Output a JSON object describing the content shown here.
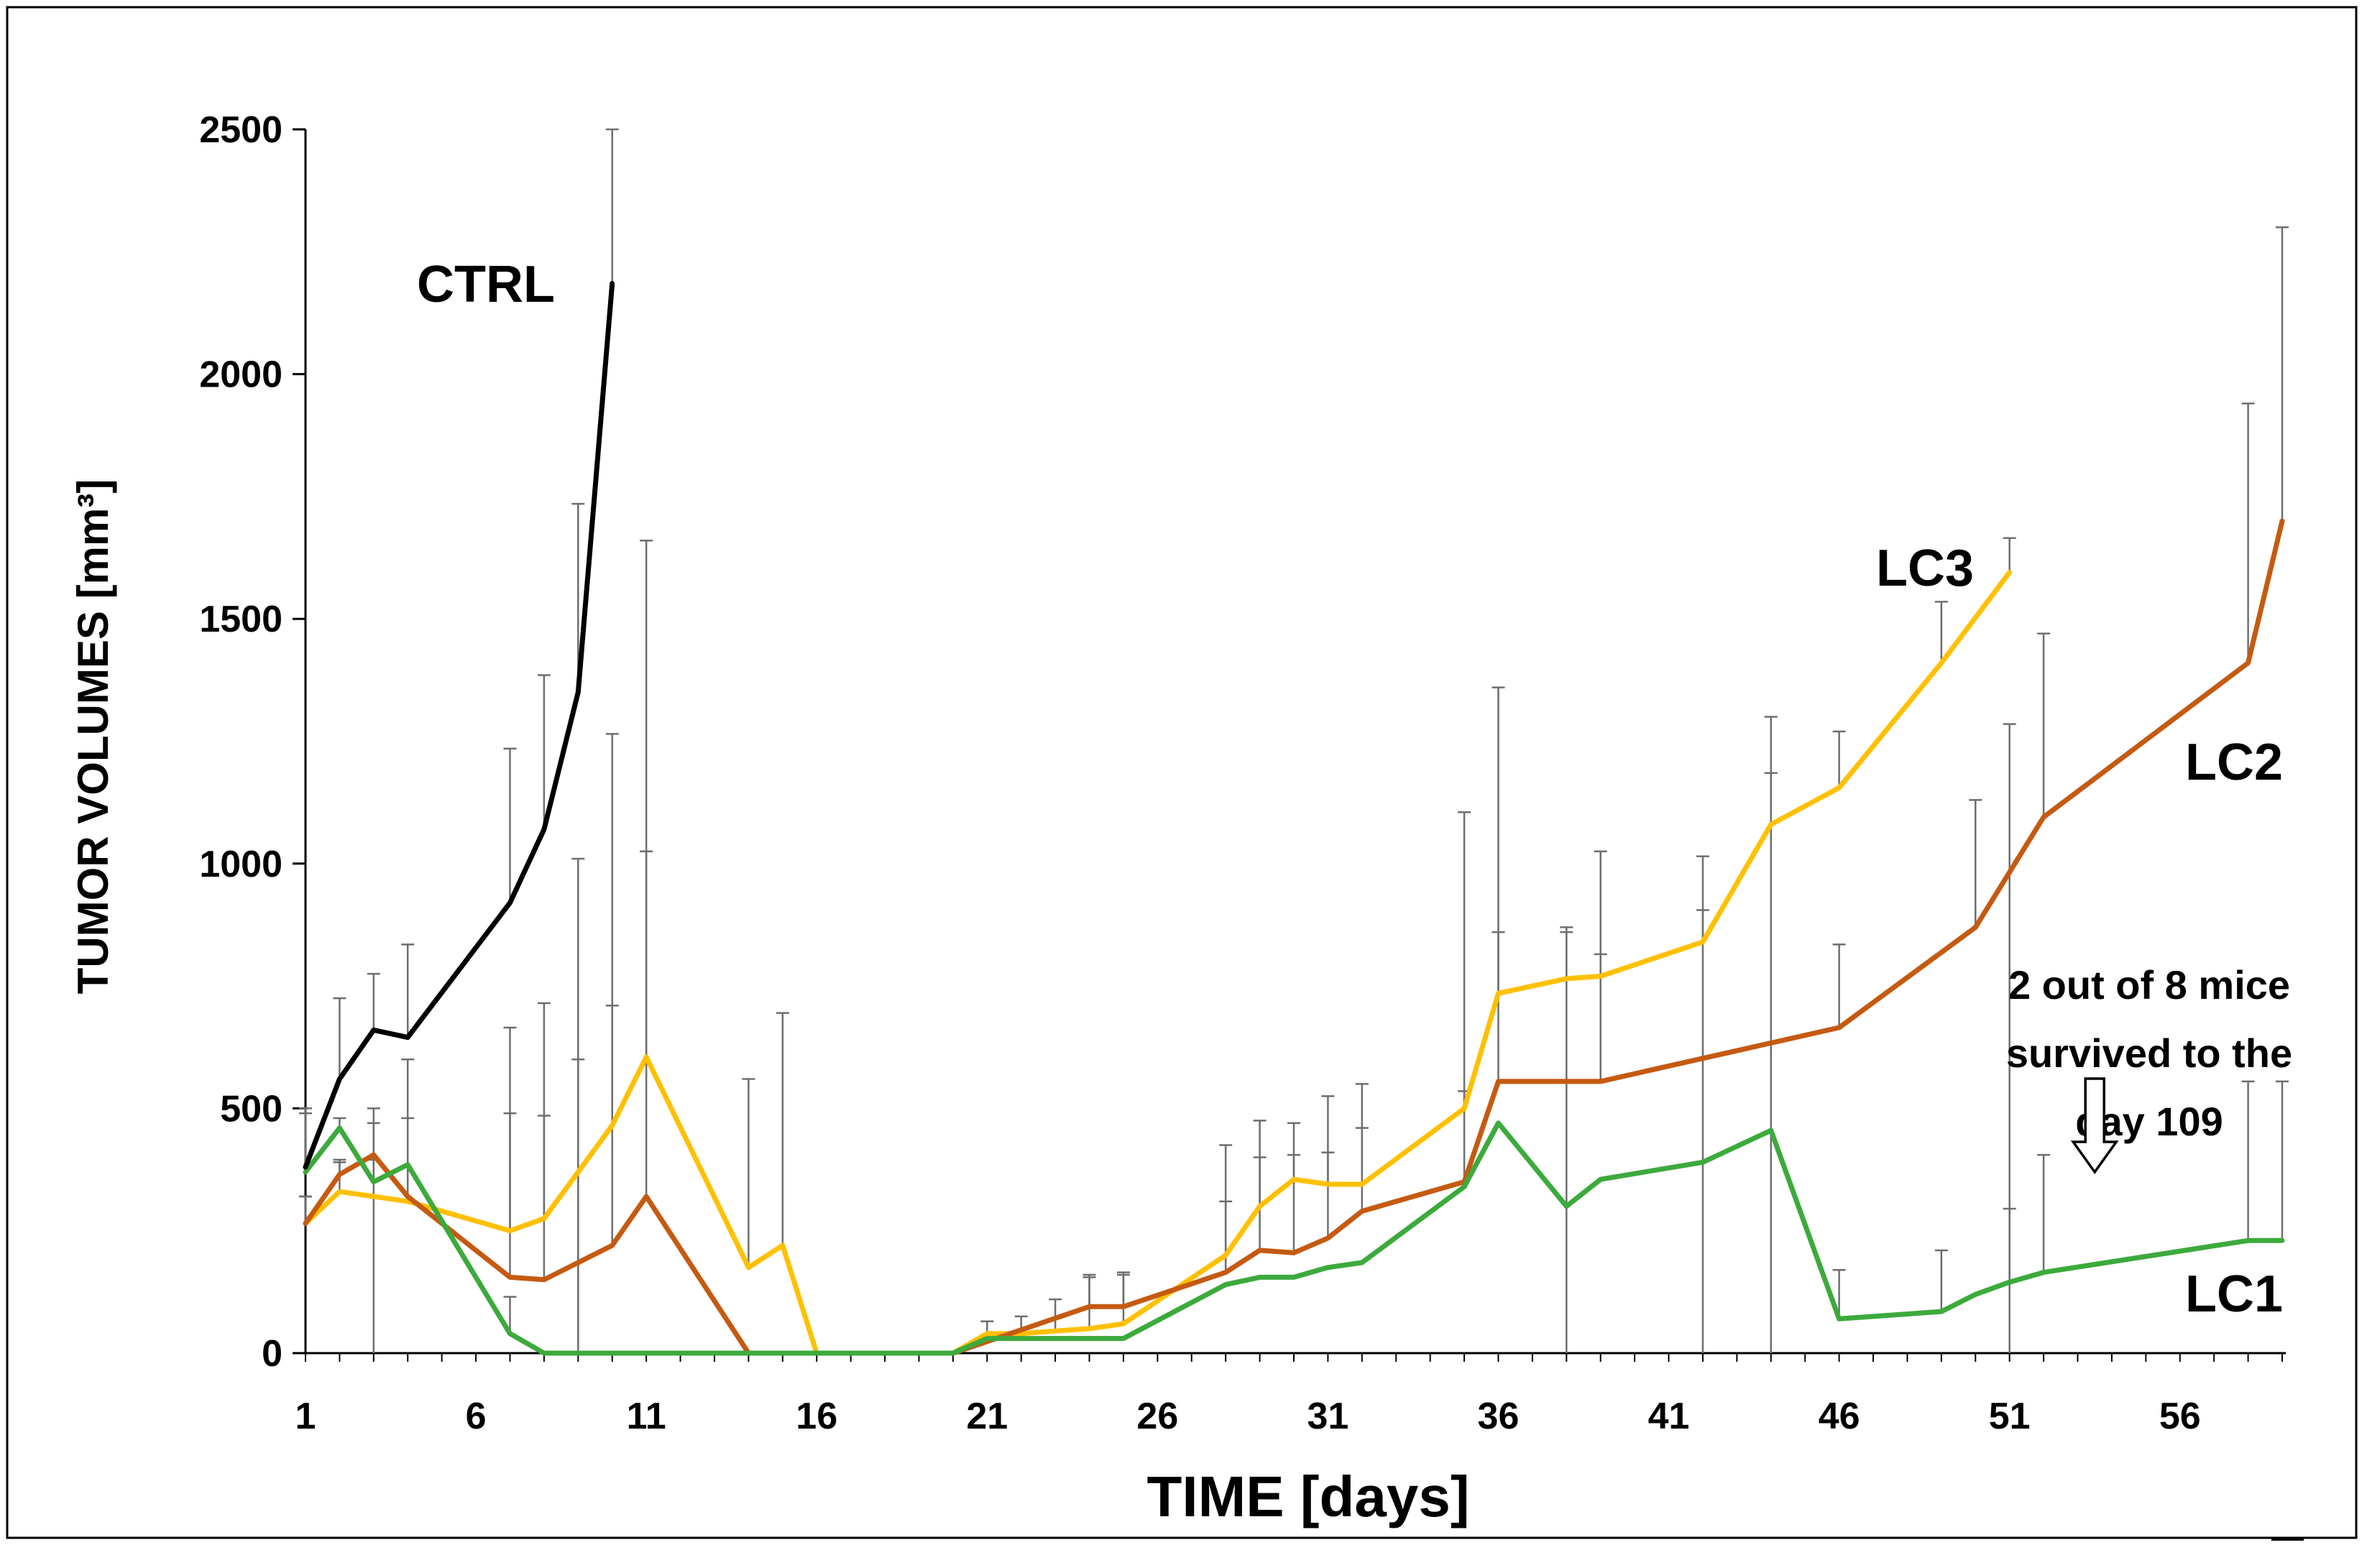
{
  "chart_data": {
    "type": "line",
    "title": "",
    "xlabel": "TIME [days]",
    "ylabel": "TUMOR VOLUMES [mm³]",
    "xlim": [
      1,
      59
    ],
    "ylim": [
      0,
      2500
    ],
    "xticks": [
      1,
      6,
      11,
      16,
      21,
      26,
      31,
      36,
      41,
      46,
      51,
      56
    ],
    "yticks": [
      0,
      500,
      1000,
      1500,
      2000,
      2500
    ],
    "grid": false,
    "legend": "none",
    "series": [
      {
        "name": "CTRL",
        "color": "#000000",
        "points": [
          [
            1,
            380
          ],
          [
            2,
            560
          ],
          [
            3,
            660
          ],
          [
            4,
            645
          ],
          [
            7,
            920
          ],
          [
            8,
            1070
          ],
          [
            9,
            1350
          ],
          [
            10,
            2185
          ]
        ],
        "errors": [
          [
            1,
            500
          ],
          [
            2,
            725
          ],
          [
            3,
            775
          ],
          [
            4,
            835
          ],
          [
            7,
            1235
          ],
          [
            8,
            1385
          ],
          [
            9,
            1735
          ],
          [
            10,
            2500
          ]
        ]
      },
      {
        "name": "LC3",
        "color": "#FFC000",
        "points": [
          [
            1,
            265
          ],
          [
            2,
            330
          ],
          [
            4,
            310
          ],
          [
            7,
            250
          ],
          [
            8,
            275
          ],
          [
            10,
            465
          ],
          [
            11,
            605
          ],
          [
            14,
            175
          ],
          [
            15,
            220
          ],
          [
            16,
            0
          ],
          [
            20,
            0
          ],
          [
            21,
            40
          ],
          [
            22,
            40
          ],
          [
            23,
            45
          ],
          [
            24,
            50
          ],
          [
            25,
            60
          ],
          [
            28,
            200
          ],
          [
            29,
            300
          ],
          [
            30,
            355
          ],
          [
            31,
            345
          ],
          [
            32,
            345
          ],
          [
            35,
            500
          ],
          [
            36,
            735
          ],
          [
            38,
            765
          ],
          [
            39,
            770
          ],
          [
            42,
            840
          ],
          [
            44,
            1080
          ],
          [
            46,
            1155
          ],
          [
            49,
            1410
          ],
          [
            51,
            1595
          ]
        ],
        "errors": [
          [
            1,
            320
          ],
          [
            2,
            390
          ],
          [
            3,
            500
          ],
          [
            4,
            600
          ],
          [
            7,
            665
          ],
          [
            8,
            715
          ],
          [
            9,
            1010
          ],
          [
            10,
            1265
          ],
          [
            11,
            1660
          ],
          [
            14,
            560
          ],
          [
            15,
            695
          ],
          [
            21,
            65
          ],
          [
            22,
            75
          ],
          [
            23,
            110
          ],
          [
            24,
            155
          ],
          [
            25,
            165
          ],
          [
            28,
            425
          ],
          [
            29,
            475
          ],
          [
            30,
            470
          ],
          [
            31,
            525
          ],
          [
            32,
            550
          ],
          [
            35,
            1105
          ],
          [
            36,
            1360
          ],
          [
            38,
            870
          ],
          [
            39,
            1025
          ],
          [
            42,
            1015
          ],
          [
            44,
            1300
          ],
          [
            46,
            1270
          ],
          [
            49,
            1535
          ],
          [
            51,
            1665
          ]
        ]
      },
      {
        "name": "LC2",
        "color": "#C55A11",
        "points": [
          [
            1,
            265
          ],
          [
            2,
            365
          ],
          [
            3,
            405
          ],
          [
            4,
            320
          ],
          [
            7,
            155
          ],
          [
            8,
            150
          ],
          [
            10,
            220
          ],
          [
            11,
            320
          ],
          [
            14,
            0
          ],
          [
            20,
            0
          ],
          [
            24,
            95
          ],
          [
            25,
            95
          ],
          [
            28,
            165
          ],
          [
            29,
            210
          ],
          [
            30,
            205
          ],
          [
            31,
            235
          ],
          [
            32,
            290
          ],
          [
            35,
            350
          ],
          [
            36,
            555
          ],
          [
            39,
            555
          ],
          [
            46,
            665
          ],
          [
            50,
            870
          ],
          [
            52,
            1095
          ],
          [
            58,
            1410
          ],
          [
            59,
            1700
          ]
        ],
        "errors": [
          [
            1,
            320
          ],
          [
            2,
            395
          ],
          [
            3,
            470
          ],
          [
            4,
            480
          ],
          [
            7,
            490
          ],
          [
            8,
            485
          ],
          [
            9,
            600
          ],
          [
            10,
            710
          ],
          [
            11,
            1025
          ],
          [
            24,
            160
          ],
          [
            25,
            160
          ],
          [
            28,
            310
          ],
          [
            29,
            400
          ],
          [
            30,
            405
          ],
          [
            31,
            410
          ],
          [
            32,
            460
          ],
          [
            35,
            535
          ],
          [
            36,
            860
          ],
          [
            38,
            860
          ],
          [
            39,
            815
          ],
          [
            42,
            905
          ],
          [
            44,
            1185
          ],
          [
            46,
            835
          ],
          [
            50,
            1130
          ],
          [
            51,
            1285
          ],
          [
            52,
            1470
          ],
          [
            58,
            1940
          ],
          [
            59,
            2300
          ]
        ]
      },
      {
        "name": "LC1",
        "color": "#3CAA3C",
        "points": [
          [
            1,
            370
          ],
          [
            2,
            460
          ],
          [
            3,
            350
          ],
          [
            4,
            385
          ],
          [
            7,
            40
          ],
          [
            8,
            0
          ],
          [
            14,
            0
          ],
          [
            20,
            0
          ],
          [
            21,
            30
          ],
          [
            25,
            30
          ],
          [
            28,
            140
          ],
          [
            29,
            155
          ],
          [
            30,
            155
          ],
          [
            31,
            175
          ],
          [
            32,
            185
          ],
          [
            35,
            340
          ],
          [
            36,
            470
          ],
          [
            38,
            300
          ],
          [
            39,
            355
          ],
          [
            42,
            390
          ],
          [
            44,
            455
          ],
          [
            46,
            70
          ],
          [
            49,
            85
          ],
          [
            50,
            120
          ],
          [
            51,
            145
          ],
          [
            52,
            165
          ],
          [
            58,
            230
          ],
          [
            59,
            230
          ]
        ],
        "errors": [
          [
            1,
            490
          ],
          [
            2,
            480
          ],
          [
            3,
            395
          ],
          [
            7,
            115
          ],
          [
            46,
            170
          ],
          [
            49,
            210
          ],
          [
            51,
            295
          ],
          [
            52,
            405
          ],
          [
            58,
            555
          ],
          [
            59,
            555
          ]
        ]
      }
    ],
    "labels": {
      "ctrl": "CTRL",
      "lc3": "LC3",
      "lc2": "LC2",
      "lc1": "LC1"
    },
    "annotation": {
      "lines": [
        "2 out of 8 mice",
        "survived to the",
        "day 109"
      ],
      "arrow_x": 53.5,
      "arrow_y": 370
    }
  }
}
